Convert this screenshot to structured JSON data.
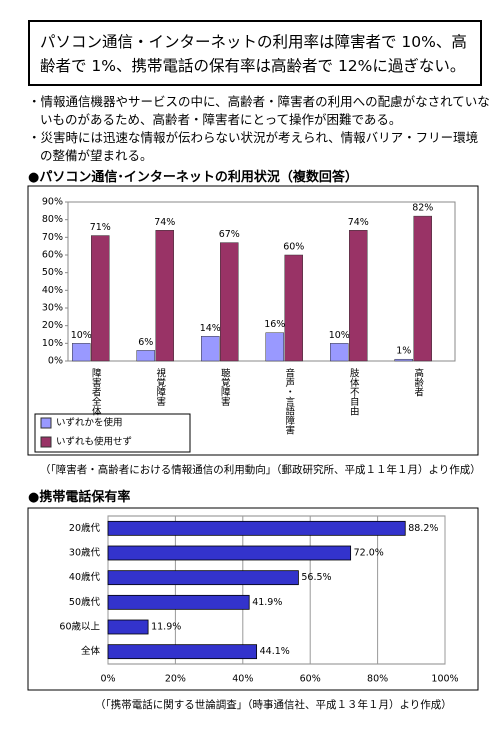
{
  "header": {
    "title": "パソコン通信・インターネットの利用率は障害者で 10%、高齢者で 1%、携帯電話の保有率は高齢者で 12%に過ぎない。"
  },
  "bullets": [
    "・情報通信機器やサービスの中に、高齢者・障害者の利用への配慮がなされていないものがあるため、高齢者・障害者にとって操作が困難である。",
    "・災害時には迅速な情報が伝わらない状況が考えられ、情報バリア・フリー環境の整備が望まれる。"
  ],
  "sections": [
    {
      "heading": "●パソコン通信･インターネットの利用状況（複数回答）",
      "source": "（「障害者・高齢者における情報通信の利用動向」（郵政研究所、平成１１年１月）より作成）"
    },
    {
      "heading": "●携帯電話保有率",
      "source": "（「携帯電話に関する世論調査」（時事通信社、平成１３年１月）より作成）"
    }
  ],
  "chart_data": [
    {
      "type": "bar",
      "categories": [
        "障害者全体",
        "視覚障害",
        "聴覚障害",
        "音声・言語障害",
        "肢体不自由",
        "高齢者"
      ],
      "series": [
        {
          "name": "いずれかを使用",
          "color": "#9999ff",
          "values": [
            10,
            6,
            14,
            16,
            10,
            1
          ],
          "value_labels": [
            "10%",
            "6%",
            "14%",
            "16%",
            "10%",
            "1%"
          ]
        },
        {
          "name": "いずれも使用せず",
          "color": "#993366",
          "values": [
            71,
            74,
            67,
            60,
            74,
            82
          ],
          "value_labels": [
            "71%",
            "74%",
            "67%",
            "60%",
            "74%",
            "82%"
          ]
        }
      ],
      "ylim": [
        0,
        90
      ],
      "yticks": [
        {
          "value": 0,
          "label": "0%"
        },
        {
          "value": 10,
          "label": "10%"
        },
        {
          "value": 20,
          "label": "20%"
        },
        {
          "value": 30,
          "label": "30%"
        },
        {
          "value": 40,
          "label": "40%"
        },
        {
          "value": 50,
          "label": "50%"
        },
        {
          "value": 60,
          "label": "60%"
        },
        {
          "value": 70,
          "label": "70%"
        },
        {
          "value": 80,
          "label": "80%"
        },
        {
          "value": 90,
          "label": "90%"
        }
      ],
      "grid": false,
      "legend": "bottom-left"
    },
    {
      "type": "barh",
      "categories": [
        "20歳代",
        "30歳代",
        "40歳代",
        "50歳代",
        "60歳以上",
        "全体"
      ],
      "values": [
        88.2,
        72.0,
        56.5,
        41.9,
        11.9,
        44.1
      ],
      "value_labels": [
        "88.2%",
        "72.0%",
        "56.5%",
        "41.9%",
        "11.9%",
        "44.1%"
      ],
      "color": "#3333cc",
      "xlim": [
        0,
        100
      ],
      "xticks": [
        {
          "value": 0,
          "label": "0%"
        },
        {
          "value": 20,
          "label": "20%"
        },
        {
          "value": 40,
          "label": "40%"
        },
        {
          "value": 60,
          "label": "60%"
        },
        {
          "value": 80,
          "label": "80%"
        },
        {
          "value": 100,
          "label": "100%"
        }
      ],
      "grid": true
    }
  ]
}
